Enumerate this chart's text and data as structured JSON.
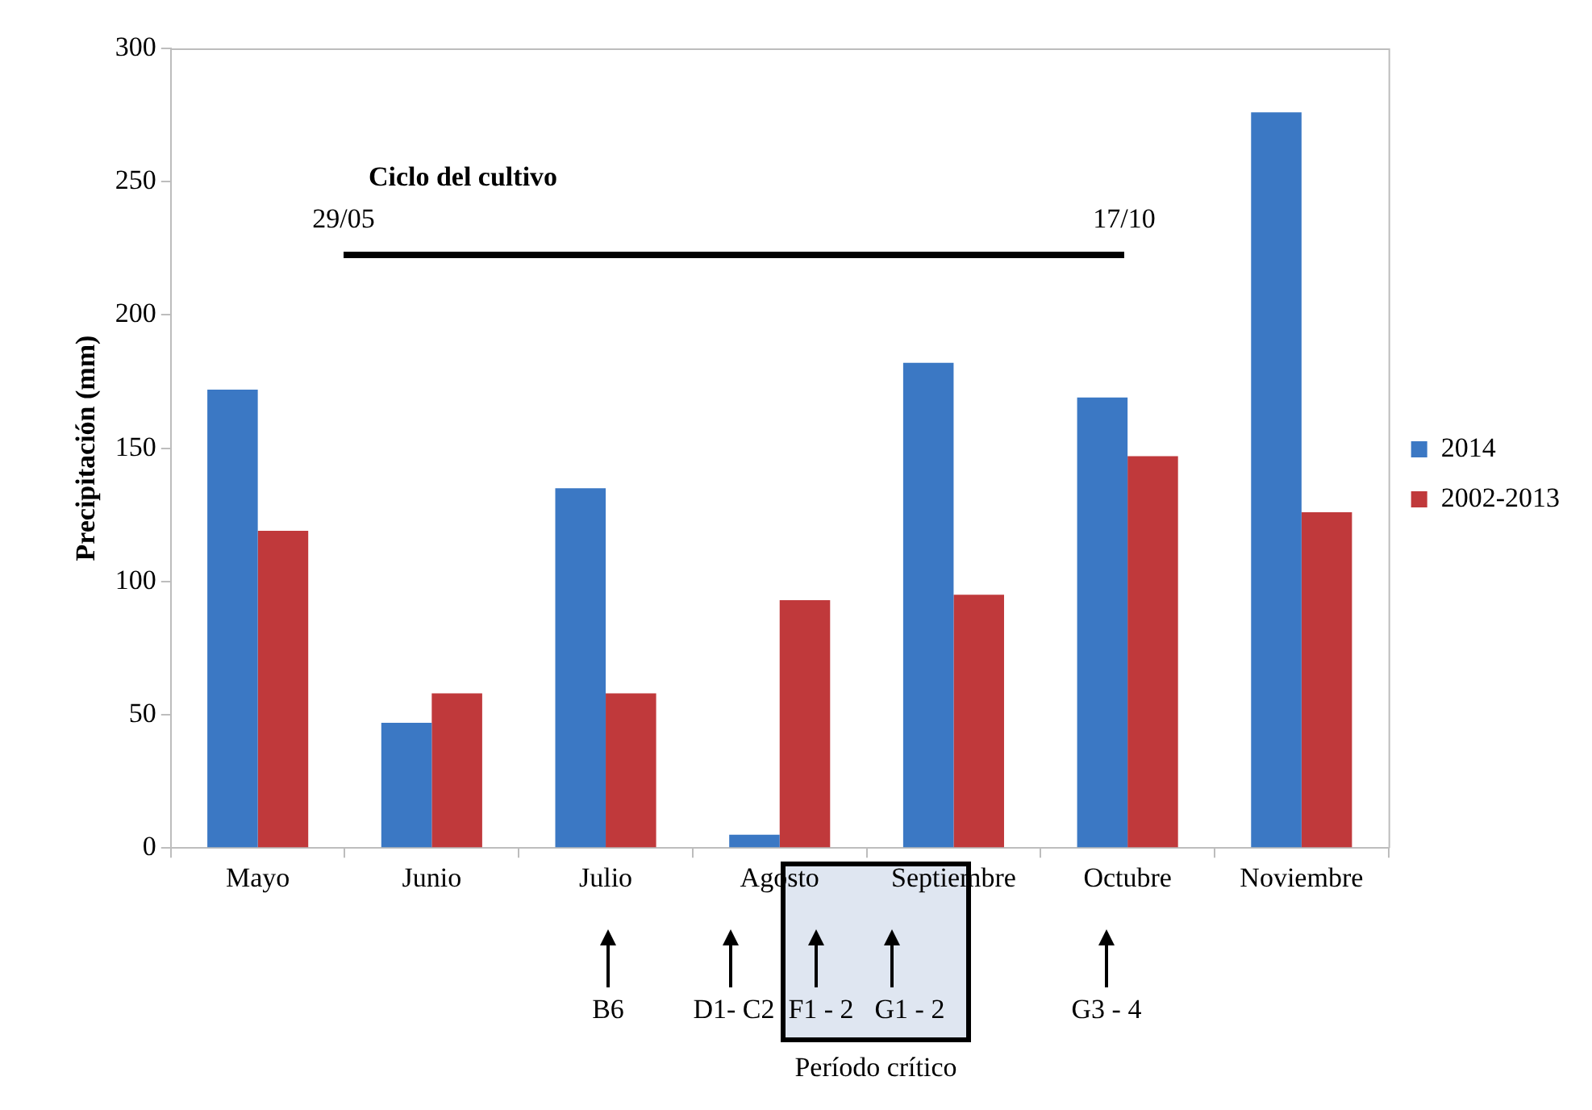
{
  "chart_data": {
    "type": "bar",
    "ylabel": "Precipitación (mm)",
    "categories": [
      "Mayo",
      "Junio",
      "Julio",
      "Agosto",
      "Septiembre",
      "Octubre",
      "Noviembre"
    ],
    "series": [
      {
        "name": "2014",
        "color": "#3b78c4",
        "values": [
          172,
          47,
          135,
          5,
          182,
          169,
          276
        ]
      },
      {
        "name": "2002-2013",
        "color": "#c0393b",
        "values": [
          119,
          58,
          58,
          93,
          95,
          147,
          126
        ]
      }
    ],
    "ylim": [
      0,
      300
    ],
    "yticks": [
      0,
      50,
      100,
      150,
      200,
      250,
      300
    ],
    "grid": false,
    "legend": "right",
    "annotations": [
      "Ciclo del cultivo",
      "29/05",
      "17/10",
      "B6",
      "D1- C2",
      "F1 - 2",
      "G1 - 2",
      "G3 - 4",
      "Período crítico"
    ]
  }
}
